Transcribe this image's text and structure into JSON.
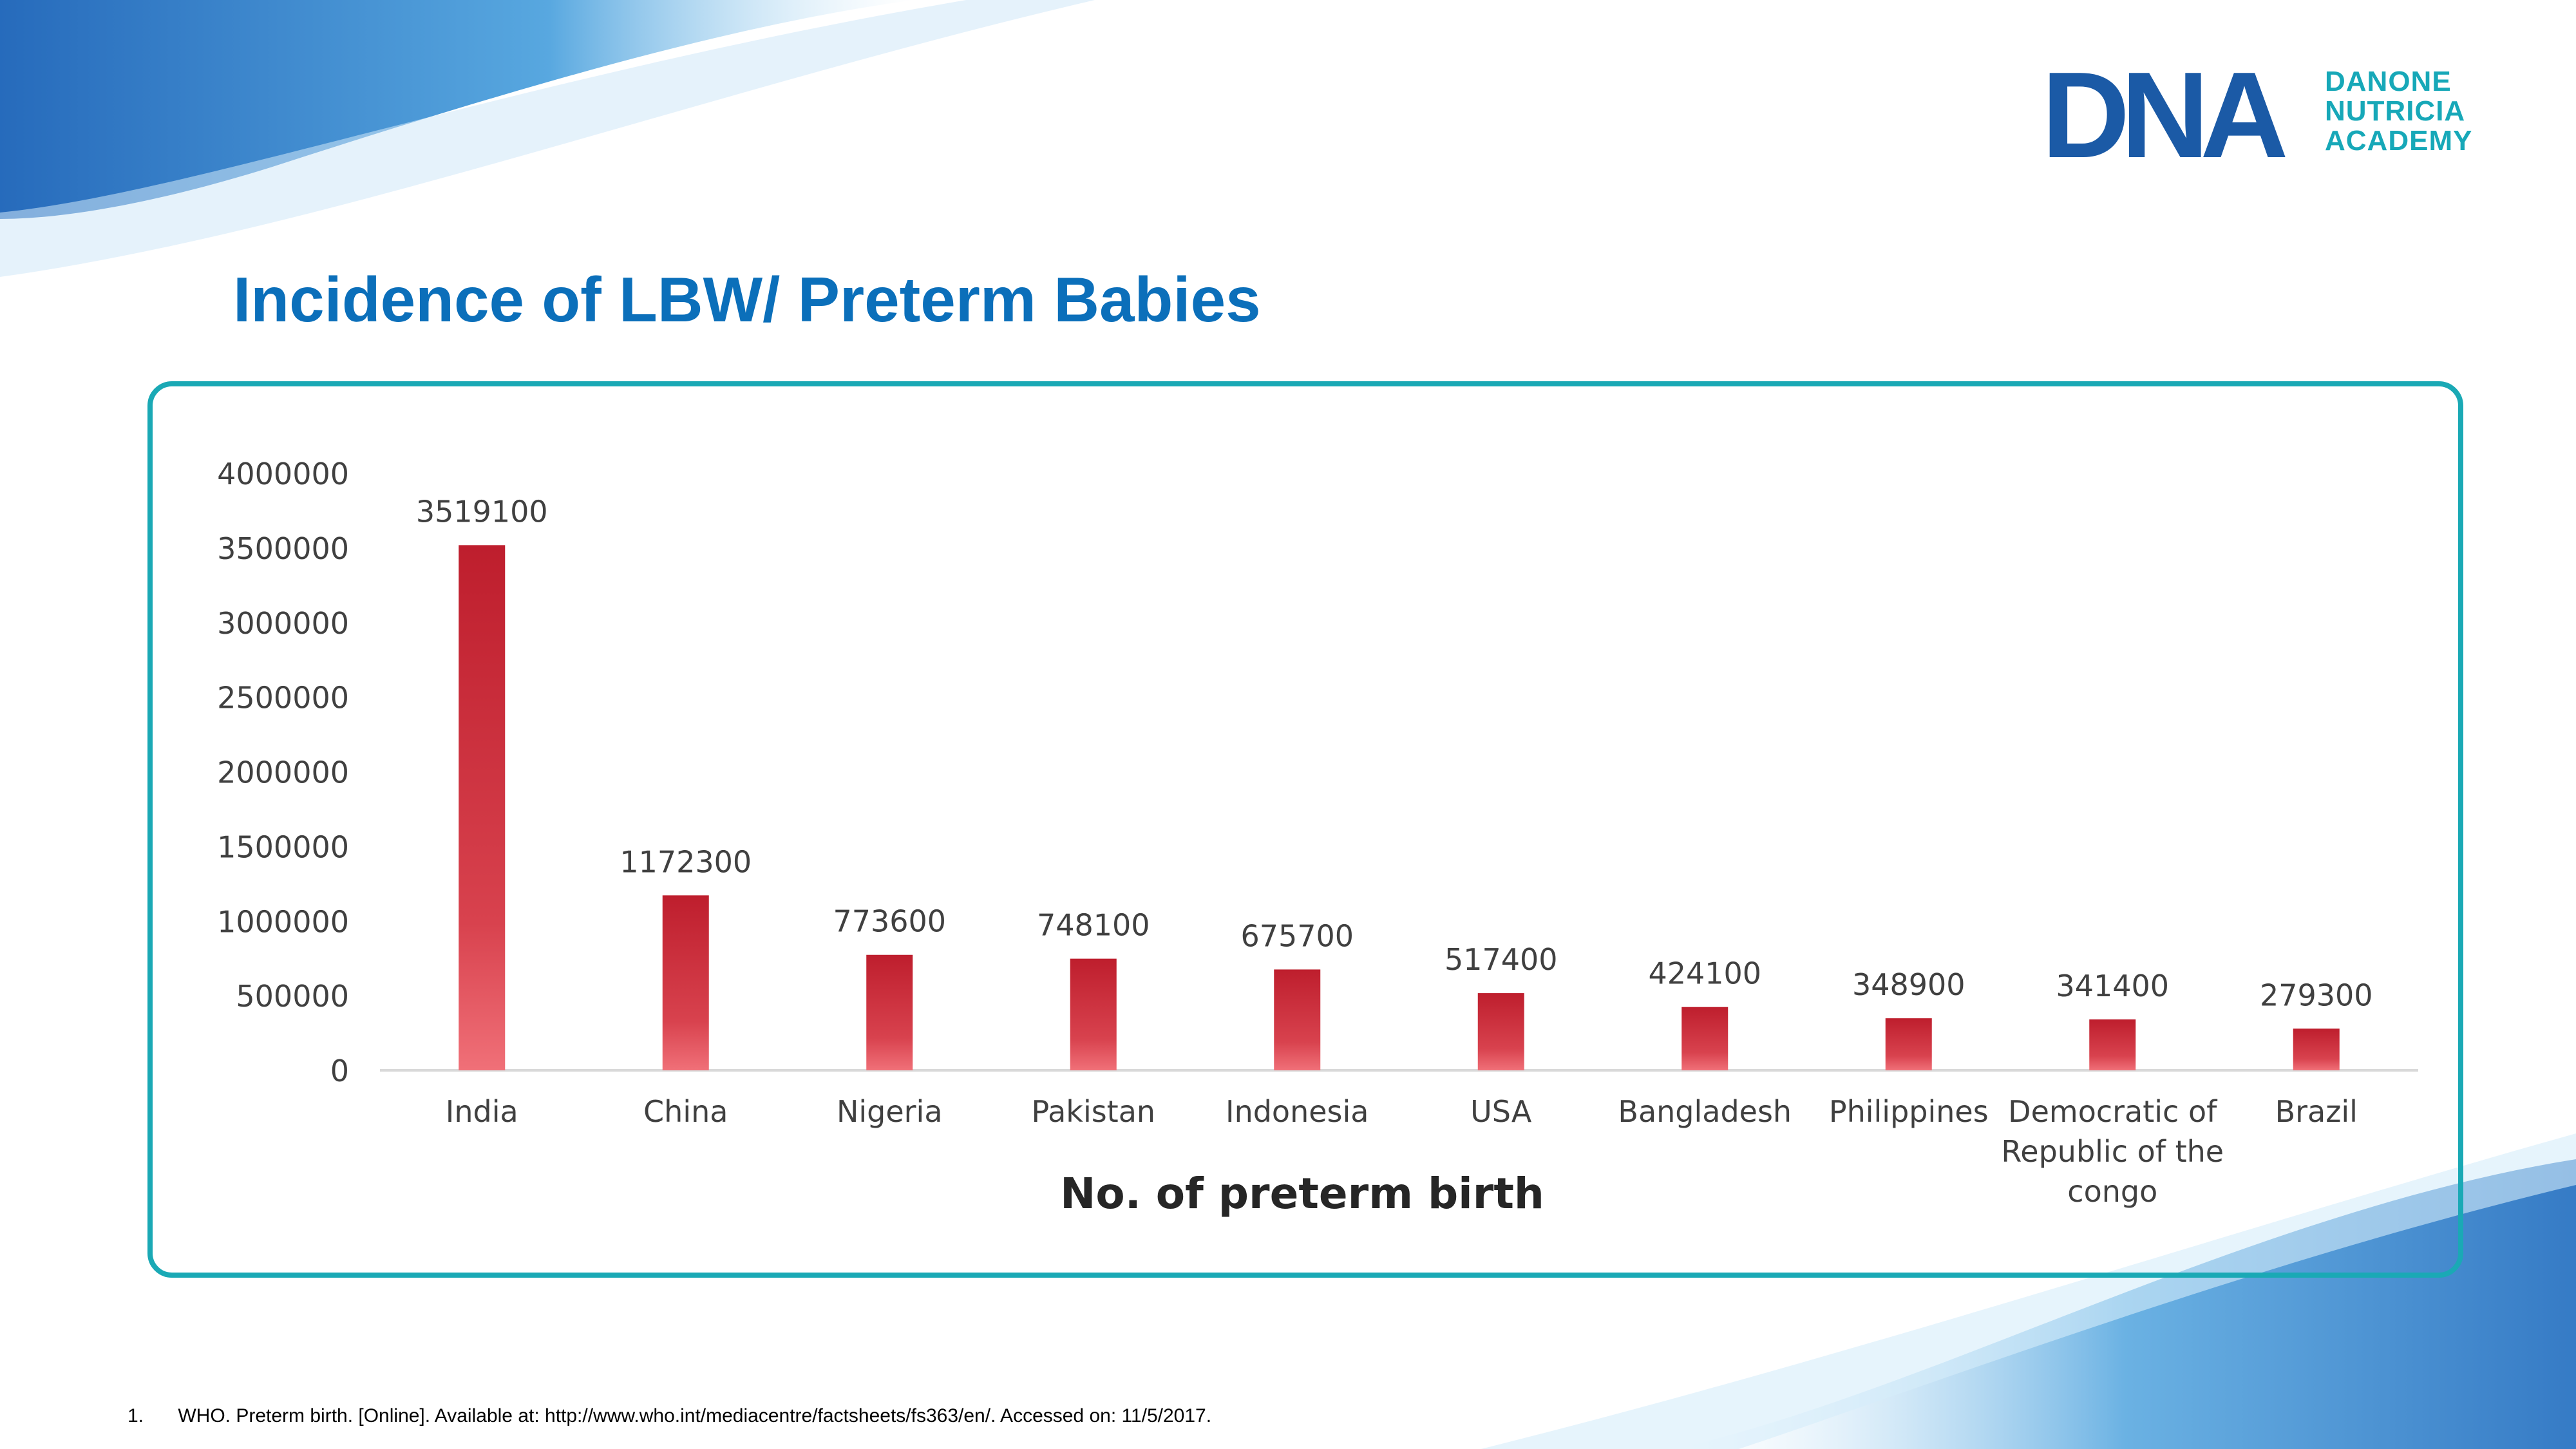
{
  "slide": {
    "title": "Incidence of LBW/ Preterm Babies",
    "title_color": "#0b6fba"
  },
  "logo": {
    "mark_text": "DNA",
    "lines": [
      "DANONE",
      "NUTRICIA",
      "ACADEMY"
    ],
    "color_dark": "#1b5aa6",
    "color_teal": "#17a8b8"
  },
  "footnote": {
    "number": "1.",
    "text": "WHO. Preterm birth. [Online]. Available at: http://www.who.int/mediacentre/factsheets/fs363/en/. Accessed on: 11/5/2017."
  },
  "chart_data": {
    "type": "bar",
    "title": "",
    "xlabel": "No. of preterm birth",
    "ylabel": "",
    "ylim": [
      0,
      4000000
    ],
    "yticks": [
      0,
      500000,
      1000000,
      1500000,
      2000000,
      2500000,
      3000000,
      3500000,
      4000000
    ],
    "grid": false,
    "categories": [
      [
        "India"
      ],
      [
        "China"
      ],
      [
        "Nigeria"
      ],
      [
        "Pakistan"
      ],
      [
        "Indonesia"
      ],
      [
        "USA"
      ],
      [
        "Bangladesh"
      ],
      [
        "Philippines"
      ],
      [
        "Democratic of",
        "Republic of the",
        "congo"
      ],
      [
        "Brazil"
      ]
    ],
    "values": [
      3519100,
      1172300,
      773600,
      748100,
      675700,
      517400,
      424100,
      348900,
      341400,
      279300
    ],
    "bar_color_top": "#be1e2d",
    "bar_color_bottom": "#f07078",
    "frame_color": "#1aa9b5"
  }
}
